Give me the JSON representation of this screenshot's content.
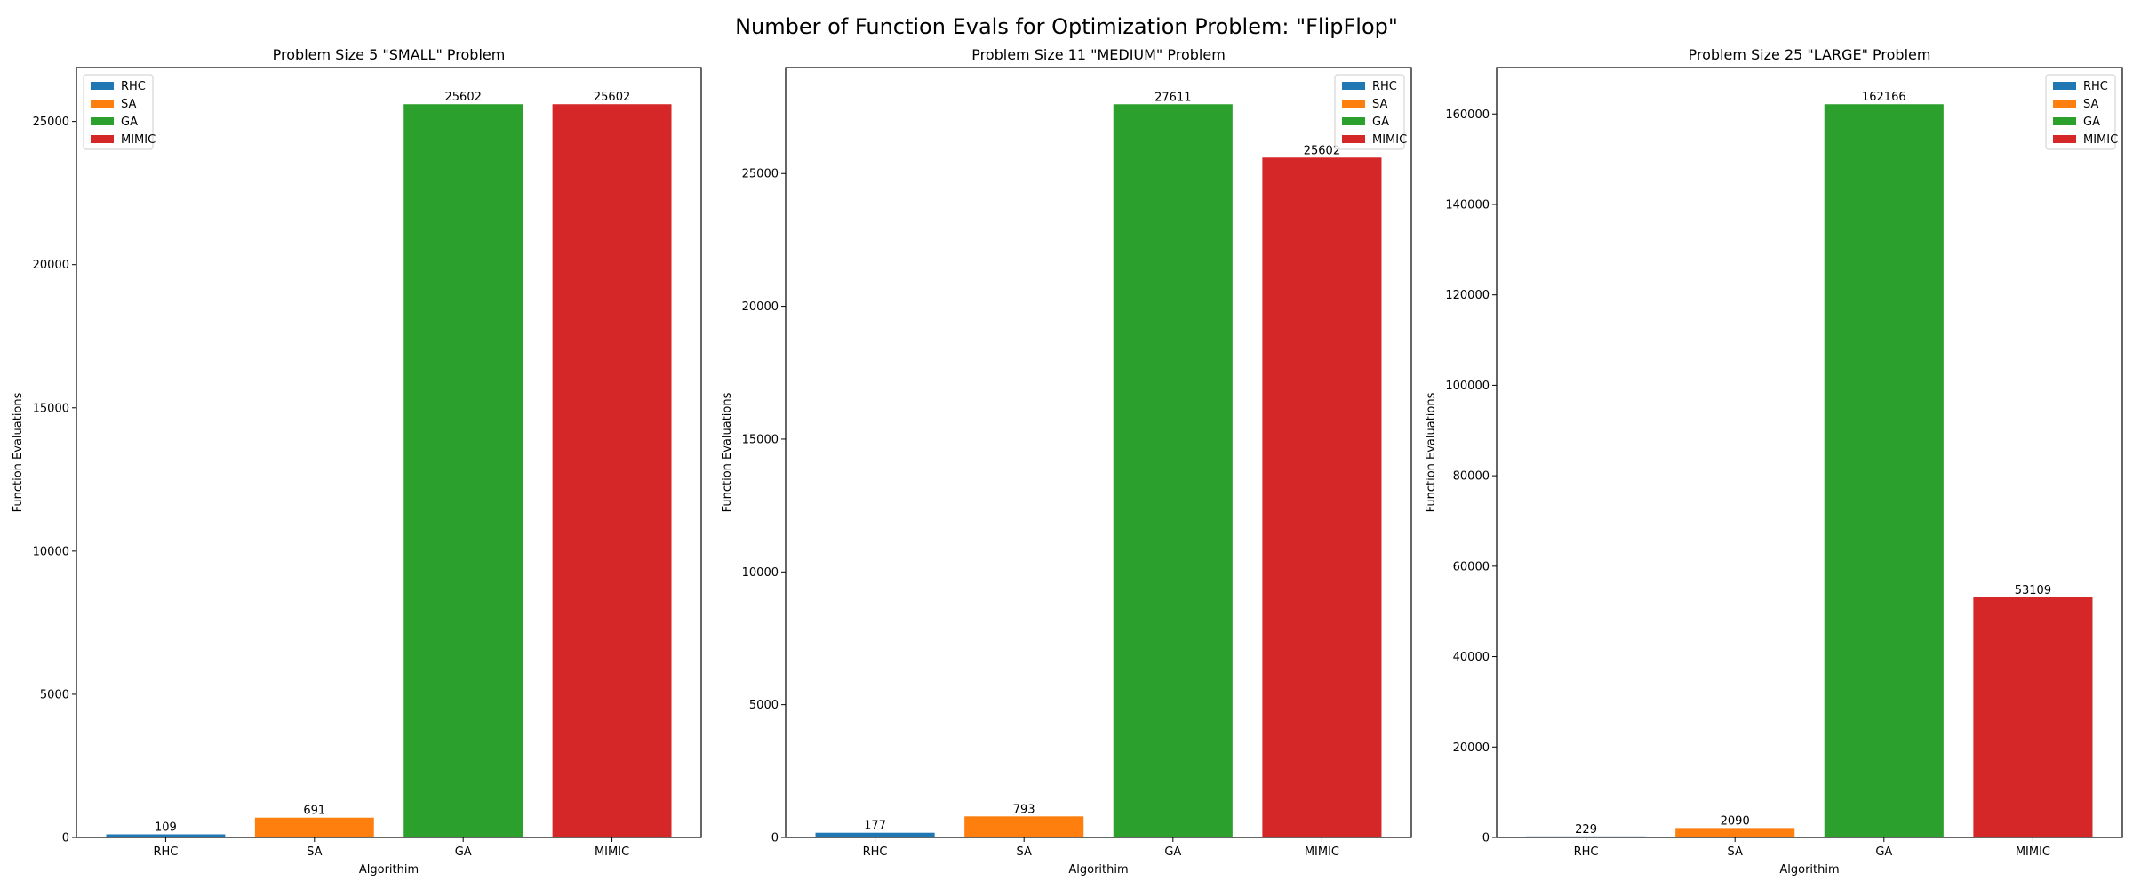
{
  "figure": {
    "title": "Number of Function Evals for Optimization Problem: \"FlipFlop\""
  },
  "colors": {
    "RHC": "#1f77b4",
    "SA": "#ff7f0e",
    "GA": "#2ca02c",
    "MIMIC": "#d62728"
  },
  "chart_data": [
    {
      "type": "bar",
      "title": "Problem Size 5 \"SMALL\" Problem",
      "xlabel": "Algorithim",
      "ylabel": "Function Evaluations",
      "categories": [
        "RHC",
        "SA",
        "GA",
        "MIMIC"
      ],
      "values": [
        109,
        691,
        25602,
        25602
      ],
      "value_labels": [
        "109",
        "691",
        "25602",
        "25602"
      ],
      "ylim": [
        0,
        26882
      ],
      "yticks": [
        0,
        5000,
        10000,
        15000,
        20000,
        25000
      ],
      "legend": [
        "RHC",
        "SA",
        "GA",
        "MIMIC"
      ],
      "legend_loc": "upper left",
      "grid": false
    },
    {
      "type": "bar",
      "title": "Problem Size 11 \"MEDIUM\" Problem",
      "xlabel": "Algorithim",
      "ylabel": "Function Evaluations",
      "categories": [
        "RHC",
        "SA",
        "GA",
        "MIMIC"
      ],
      "values": [
        177,
        793,
        27611,
        25602
      ],
      "value_labels": [
        "177",
        "793",
        "27611",
        "25602"
      ],
      "ylim": [
        0,
        28992
      ],
      "yticks": [
        0,
        5000,
        10000,
        15000,
        20000,
        25000
      ],
      "legend": [
        "RHC",
        "SA",
        "GA",
        "MIMIC"
      ],
      "legend_loc": "upper right",
      "grid": false
    },
    {
      "type": "bar",
      "title": "Problem Size 25 \"LARGE\" Problem",
      "xlabel": "Algorithim",
      "ylabel": "Function Evaluations",
      "categories": [
        "RHC",
        "SA",
        "GA",
        "MIMIC"
      ],
      "values": [
        229,
        2090,
        162166,
        53109
      ],
      "value_labels": [
        "229",
        "2090",
        "162166",
        "53109"
      ],
      "ylim": [
        0,
        170274
      ],
      "yticks": [
        0,
        20000,
        40000,
        60000,
        80000,
        100000,
        120000,
        140000,
        160000
      ],
      "legend": [
        "RHC",
        "SA",
        "GA",
        "MIMIC"
      ],
      "legend_loc": "upper right",
      "grid": false
    }
  ]
}
